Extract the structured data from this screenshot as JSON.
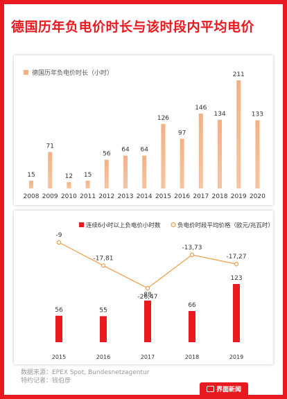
{
  "title": "德国历年负电价时长与该时段内平均电价",
  "source_line": "数据来源：EPEX Spot, Bundesnetzagentur",
  "reporter_line": "特约记者：钱伯彦",
  "brand": {
    "name": "界面新闻"
  },
  "colors": {
    "frame": "#e8191f",
    "bar_top": "#f4b183",
    "bar_bottom": "#e8191f",
    "line": "#f19b45"
  },
  "chart_data": [
    {
      "type": "bar",
      "legend": "德国历年负电价时长（小时）",
      "categories": [
        "2008",
        "2009",
        "2010",
        "2011",
        "2012",
        "2013",
        "2014",
        "2015",
        "2016",
        "2017",
        "2018",
        "2019",
        "2020"
      ],
      "values": [
        15,
        71,
        12,
        15,
        56,
        64,
        64,
        126,
        97,
        146,
        134,
        211,
        133
      ],
      "value_labels": [
        "15",
        "71",
        "12",
        "15",
        "56",
        "64",
        "64",
        "126",
        "97",
        "146",
        "134",
        "211",
        "133"
      ]
    },
    {
      "type": "bar+line",
      "categories": [
        "2015",
        "2016",
        "2017",
        "2018",
        "2019"
      ],
      "series": [
        {
          "name": "连续6小时以上负电价小时数",
          "type": "bar",
          "values": [
            56,
            55,
            88,
            66,
            123
          ],
          "value_labels": [
            "56",
            "55",
            "88",
            "66",
            "123"
          ]
        },
        {
          "name": "负电价时段平均价格（欧元/兆瓦时）",
          "type": "line",
          "values": [
            -9,
            -17.81,
            -26.47,
            -13.73,
            -17.27
          ],
          "value_labels": [
            "-9",
            "-17,81",
            "-26,47",
            "-13,73",
            "-17,27"
          ]
        }
      ]
    }
  ]
}
